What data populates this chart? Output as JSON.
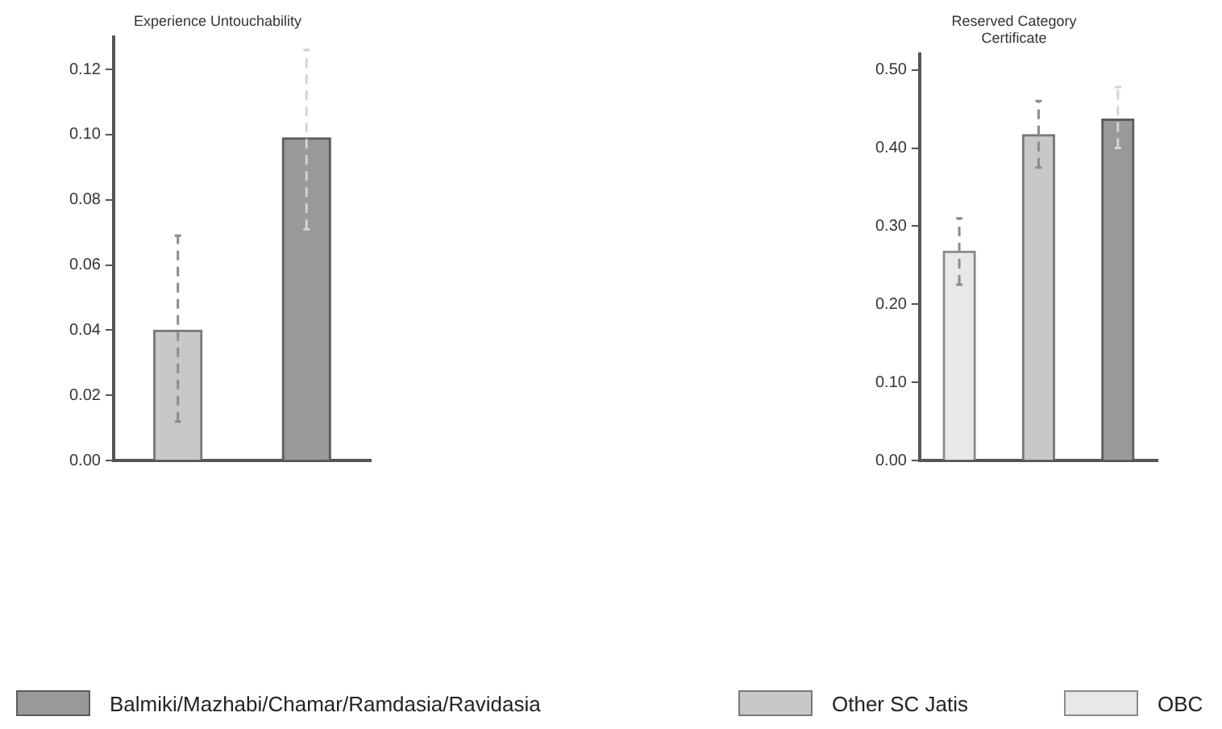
{
  "chart_data": [
    {
      "type": "bar",
      "title": "Experience Untouchability",
      "categories": [
        null,
        null
      ],
      "ylim": [
        0,
        0.13
      ],
      "yticks": [
        {
          "value": 0,
          "label": "0.00"
        },
        {
          "value": 0.02,
          "label": "0.02"
        },
        {
          "value": 0.04,
          "label": "0.04"
        },
        {
          "value": 0.06,
          "label": "0.06"
        },
        {
          "value": 0.08,
          "label": "0.08"
        },
        {
          "value": 0.1,
          "label": "0.10"
        },
        {
          "value": 0.12,
          "label": "0.12"
        }
      ],
      "grid": false,
      "legend": false,
      "series": [
        {
          "color": "#999999",
          "values": [
            null,
            0.099
          ],
          "errors": [
            null,
            [
              0.071,
              0.126
            ]
          ]
        },
        {
          "color": "#c8c8c8",
          "values": [
            0.04,
            null
          ],
          "errors": [
            [
              0.012,
              0.069
            ],
            null
          ]
        }
      ]
    },
    {
      "type": "bar",
      "title": "Reserved Category\nCertificate",
      "categories": [
        null,
        null,
        null
      ],
      "ylim": [
        0,
        0.52
      ],
      "yticks": [
        {
          "value": 0,
          "label": "0.00"
        },
        {
          "value": 0.1,
          "label": "0.10"
        },
        {
          "value": 0.2,
          "label": "0.20"
        },
        {
          "value": 0.3,
          "label": "0.30"
        },
        {
          "value": 0.4,
          "label": "0.40"
        },
        {
          "value": 0.5,
          "label": "0.50"
        }
      ],
      "grid": false,
      "legend": "bottom",
      "series": [
        {
          "name": "Balmiki/Mazhabi/Chamar/Ramdasia/Ravidasia",
          "color": "#999999",
          "values": [
            null,
            null,
            0.437
          ],
          "errors": [
            null,
            null,
            [
              0.4,
              0.478
            ]
          ]
        },
        {
          "name": "Other SC Jatis",
          "color": "#c8c8c8",
          "values": [
            null,
            0.417,
            null
          ],
          "errors": [
            null,
            [
              0.375,
              0.46
            ],
            null
          ]
        },
        {
          "name": "OBC",
          "color": "#e8e8e8",
          "values": [
            0.268,
            null,
            null
          ],
          "errors": [
            [
              0.225,
              0.31
            ],
            null,
            null
          ]
        }
      ]
    }
  ]
}
